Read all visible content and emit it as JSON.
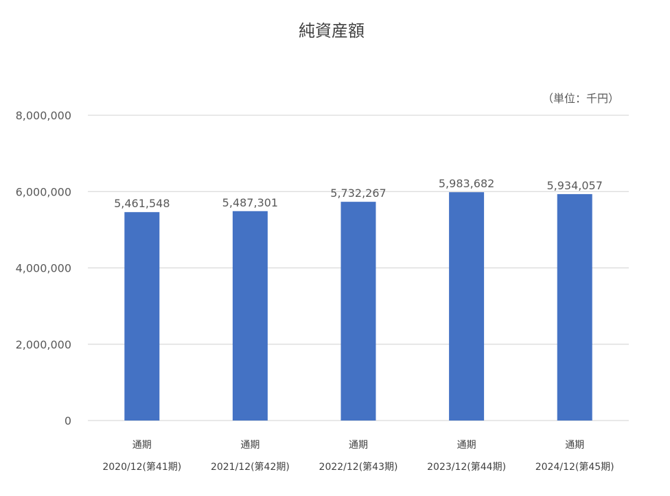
{
  "chart_data": {
    "type": "bar",
    "title": "純資産額",
    "unit_note": "（単位：千円）",
    "categories": [
      [
        "通期",
        "2020/12(第41期)"
      ],
      [
        "通期",
        "2021/12(第42期)"
      ],
      [
        "通期",
        "2022/12(第43期)"
      ],
      [
        "通期",
        "2023/12(第44期)"
      ],
      [
        "通期",
        "2024/12(第45期)"
      ]
    ],
    "series": [
      {
        "values": [
          5461548,
          5487301,
          5732267,
          5983682,
          5934057
        ],
        "data_labels": [
          "5,461,548",
          "5,487,301",
          "5,732,267",
          "5,983,682",
          "5,934,057"
        ]
      }
    ],
    "ylim": [
      0,
      8000000
    ],
    "y_ticks": [
      0,
      2000000,
      4000000,
      6000000,
      8000000
    ],
    "y_tick_labels": [
      "0",
      "2,000,000",
      "4,000,000",
      "6,000,000",
      "8,000,000"
    ],
    "grid": true,
    "legend": "none",
    "colors": {
      "bar": "#4472c4",
      "grid": "#d9d9d9",
      "text": "#595959",
      "title": "#404040"
    }
  }
}
